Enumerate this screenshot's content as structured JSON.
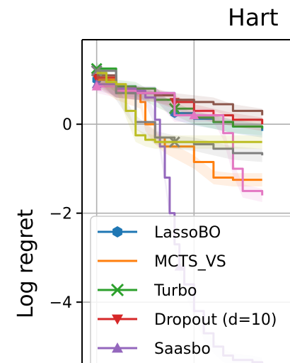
{
  "chart_data": {
    "type": "line",
    "title": "Hart",
    "ylabel": "Log regret",
    "xlabel": "",
    "ylim": [
      -5.4,
      1.9
    ],
    "yticks": [
      0,
      -2,
      -4
    ],
    "ytick_labels": [
      "0",
      "−2",
      "−4"
    ],
    "grid": true,
    "legend_position": "lower-left",
    "series": [
      {
        "name": "LassoBO",
        "color": "#1f77b4",
        "marker": "hexagon",
        "x": [
          0,
          4,
          9,
          12,
          16,
          20,
          24,
          28,
          34
        ],
        "y": [
          1.0,
          0.75,
          0.7,
          0.7,
          0.25,
          0.12,
          0.05,
          -0.05,
          -0.15
        ]
      },
      {
        "name": "MCTS_VS",
        "color": "#ff7f0e",
        "marker": "none",
        "x": [
          0,
          4,
          9,
          10,
          12,
          14,
          20,
          24,
          28,
          31,
          34
        ],
        "y": [
          1.0,
          0.7,
          0.5,
          0.0,
          -0.3,
          -0.5,
          -0.85,
          -1.2,
          -1.25,
          -1.25,
          -1.25
        ]
      },
      {
        "name": "Turbo",
        "color": "#2ca02c",
        "marker": "x",
        "x": [
          0,
          4,
          8,
          12,
          16,
          20,
          24,
          28,
          34
        ],
        "y": [
          1.25,
          0.85,
          0.8,
          0.55,
          0.35,
          0.15,
          0.05,
          -0.05,
          -0.1
        ]
      },
      {
        "name": "Dropout (d=10)",
        "color": "#d62728",
        "marker": "triangle-down",
        "x": [
          0,
          4,
          8,
          12,
          16,
          20,
          24,
          28,
          34
        ],
        "y": [
          1.05,
          0.75,
          0.7,
          0.65,
          0.5,
          0.3,
          0.2,
          0.1,
          0.0
        ]
      },
      {
        "name": "Saasbo",
        "color": "#9467bd",
        "marker": "triangle-up",
        "x": [
          0,
          4,
          8,
          10,
          12,
          13,
          14,
          15,
          16,
          17,
          18,
          20,
          22,
          24,
          26,
          28,
          32,
          34
        ],
        "y": [
          0.9,
          0.8,
          0.75,
          0.6,
          0.1,
          -0.5,
          -1.2,
          -2.0,
          -2.7,
          -3.2,
          -3.6,
          -4.2,
          -4.7,
          -5.0,
          -5.2,
          -5.3,
          -5.35,
          -5.4
        ]
      },
      {
        "name": "",
        "color": "#8c564b",
        "marker": "none",
        "x": [
          0,
          4,
          8,
          12,
          16,
          20,
          24,
          28,
          34
        ],
        "y": [
          1.1,
          0.75,
          0.7,
          0.65,
          0.55,
          0.5,
          0.45,
          0.3,
          0.2
        ]
      },
      {
        "name": "",
        "color": "#e377c2",
        "marker": "triangle-up",
        "x": [
          0,
          4,
          8,
          12,
          16,
          20,
          24,
          26,
          28,
          30,
          34
        ],
        "y": [
          0.85,
          0.75,
          0.7,
          0.7,
          0.2,
          0.2,
          0.2,
          -0.2,
          -1.0,
          -1.5,
          -1.6
        ]
      },
      {
        "name": "",
        "color": "#7f7f7f",
        "marker": "x",
        "x": [
          0,
          4,
          8,
          12,
          16,
          20,
          24,
          28,
          34
        ],
        "y": [
          1.2,
          0.7,
          0.05,
          -0.3,
          -0.4,
          -0.45,
          -0.55,
          -0.65,
          -0.7
        ]
      },
      {
        "name": "",
        "color": "#bcbd22",
        "marker": "none",
        "x": [
          0,
          2,
          4,
          6,
          8,
          10,
          12,
          16,
          20,
          24,
          28,
          34
        ],
        "y": [
          1.15,
          0.95,
          0.9,
          0.3,
          -0.25,
          -0.35,
          -0.4,
          -0.4,
          -0.4,
          -0.4,
          -0.4,
          -0.4
        ]
      }
    ]
  }
}
